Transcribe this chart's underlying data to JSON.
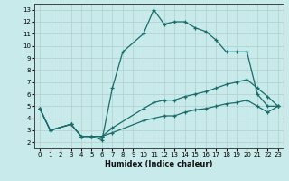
{
  "xlabel": "Humidex (Indice chaleur)",
  "bg_color": "#c8eaea",
  "line_color": "#1a6b6b",
  "grid_color": "#b0d0d0",
  "xlim": [
    -0.5,
    23.5
  ],
  "ylim": [
    1.5,
    13.5
  ],
  "xticks": [
    0,
    1,
    2,
    3,
    4,
    5,
    6,
    7,
    8,
    9,
    10,
    11,
    12,
    13,
    14,
    15,
    16,
    17,
    18,
    19,
    20,
    21,
    22,
    23
  ],
  "yticks": [
    2,
    3,
    4,
    5,
    6,
    7,
    8,
    9,
    10,
    11,
    12,
    13
  ],
  "lines": [
    {
      "x": [
        0,
        1,
        3,
        4,
        5,
        6,
        7,
        8,
        10,
        11,
        12,
        13,
        14,
        15,
        16,
        17,
        18,
        19,
        20,
        21,
        22,
        23
      ],
      "y": [
        4.8,
        3.0,
        3.5,
        2.5,
        2.5,
        2.2,
        6.5,
        9.5,
        11.0,
        13.0,
        11.8,
        12.0,
        12.0,
        11.5,
        11.2,
        10.5,
        9.5,
        9.5,
        9.5,
        6.0,
        5.0,
        5.0
      ]
    },
    {
      "x": [
        0,
        1,
        3,
        4,
        5,
        6,
        7,
        10,
        11,
        12,
        13,
        14,
        15,
        16,
        17,
        18,
        19,
        20,
        21,
        22,
        23
      ],
      "y": [
        4.8,
        3.0,
        3.5,
        2.5,
        2.5,
        2.5,
        3.2,
        4.8,
        5.3,
        5.5,
        5.5,
        5.8,
        6.0,
        6.2,
        6.5,
        6.8,
        7.0,
        7.2,
        6.5,
        5.8,
        5.0
      ]
    },
    {
      "x": [
        0,
        1,
        3,
        4,
        5,
        6,
        7,
        10,
        11,
        12,
        13,
        14,
        15,
        16,
        17,
        18,
        19,
        20,
        21,
        22,
        23
      ],
      "y": [
        4.8,
        3.0,
        3.5,
        2.5,
        2.5,
        2.5,
        2.8,
        3.8,
        4.0,
        4.2,
        4.2,
        4.5,
        4.7,
        4.8,
        5.0,
        5.2,
        5.3,
        5.5,
        5.0,
        4.5,
        5.0
      ]
    }
  ]
}
